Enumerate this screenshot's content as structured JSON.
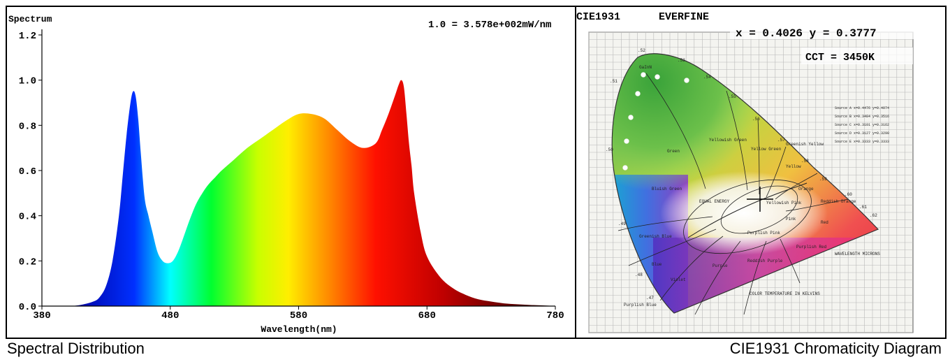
{
  "left_panel": {
    "caption": "Spectral Distribution"
  },
  "right_panel": {
    "header_left": "CIE1931",
    "header_right": "EVERFINE",
    "coords_text": "x = 0.4026 y = 0.3777",
    "cct_text": "CCT = 3450K",
    "caption": "CIE1931 Chromaticity Diagram",
    "diagram_labels": [
      "GaInN",
      "Green",
      "Yellowish Green",
      "Yellow Green",
      "Greenish Yellow",
      "Yellow",
      "Orange",
      "Reddish Orange",
      "Red",
      "Pink",
      "Yellowish Pink",
      "Purplish Pink",
      "Purplish Red",
      "Reddish Purple",
      "Purple",
      "Violet",
      "Bluish Green",
      "Greenish Blue",
      "Blue",
      "Purplish Blue",
      "WAVELENGTH MICRONS",
      "COLOR TEMPERATURE IN KELVINS",
      "EQUAL ENERGY",
      "Source A x=0.4476 y=0.4074",
      "Source B x=0.3484 y=0.3516",
      "Source C x=0.3101 y=0.3162",
      "Source D x=0.3127 y=0.3290",
      "Source E x=0.3333 y=0.3333"
    ],
    "locus_labels": [
      ".52",
      ".53",
      ".54",
      ".55",
      ".56",
      ".57",
      ".58",
      ".59",
      ".60",
      ".61",
      ".62",
      ".51",
      ".50",
      ".49",
      ".48",
      ".47"
    ],
    "colors": {
      "marker": "#000000"
    }
  },
  "chart_data": {
    "type": "area",
    "title": "Spectrum",
    "annotation": "1.0 = 3.578e+002mW/nm",
    "xlabel": "Wavelength(nm)",
    "ylabel": "Spectrum",
    "xlim": [
      380,
      780
    ],
    "ylim": [
      0,
      1.2
    ],
    "xticks": [
      380,
      480,
      580,
      680,
      780
    ],
    "yticks": [
      0.0,
      0.2,
      0.4,
      0.6,
      0.8,
      1.0,
      1.2
    ],
    "xtick_labels": [
      "380",
      "480",
      "580",
      "680",
      "780"
    ],
    "ytick_labels": [
      "0.0",
      "0.2",
      "0.4",
      "0.6",
      "0.8",
      "1.0",
      "1.2"
    ],
    "x": [
      380,
      400,
      410,
      420,
      425,
      430,
      435,
      440,
      443,
      446,
      449,
      451,
      453,
      455,
      457,
      460,
      463,
      466,
      470,
      474,
      478,
      482,
      486,
      490,
      495,
      500,
      505,
      510,
      515,
      520,
      530,
      540,
      550,
      560,
      570,
      580,
      590,
      600,
      610,
      620,
      630,
      640,
      645,
      650,
      655,
      658,
      660,
      662,
      664,
      666,
      668,
      670,
      675,
      680,
      690,
      700,
      710,
      720,
      730,
      740,
      750,
      760,
      770,
      780
    ],
    "y": [
      0.0,
      0.0,
      0.005,
      0.02,
      0.04,
      0.09,
      0.2,
      0.4,
      0.58,
      0.76,
      0.9,
      0.95,
      0.93,
      0.83,
      0.68,
      0.48,
      0.4,
      0.33,
      0.24,
      0.2,
      0.19,
      0.2,
      0.24,
      0.3,
      0.38,
      0.45,
      0.5,
      0.54,
      0.57,
      0.6,
      0.65,
      0.7,
      0.74,
      0.78,
      0.82,
      0.85,
      0.85,
      0.83,
      0.78,
      0.73,
      0.7,
      0.72,
      0.78,
      0.85,
      0.93,
      0.98,
      1.0,
      0.97,
      0.85,
      0.72,
      0.62,
      0.5,
      0.33,
      0.22,
      0.13,
      0.08,
      0.05,
      0.03,
      0.02,
      0.012,
      0.008,
      0.005,
      0.003,
      0.0
    ]
  }
}
